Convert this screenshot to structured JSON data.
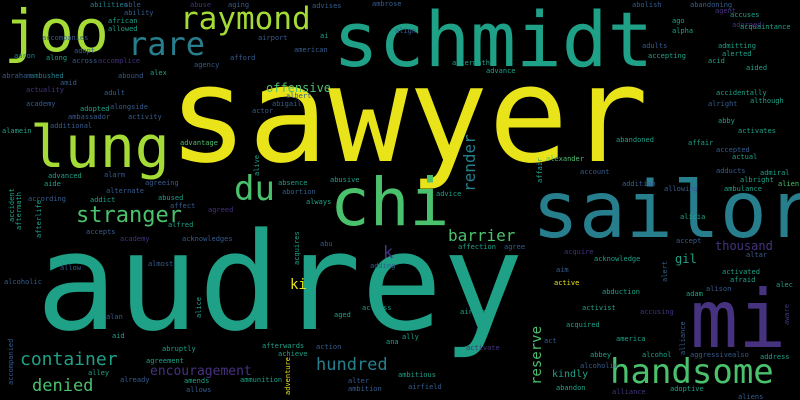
{
  "palette": {
    "background": "#000000",
    "yellow": "#e8e419",
    "lime": "#a5db36",
    "green": "#4ac16d",
    "teal": "#1fa187",
    "cyan": "#277f8e",
    "blue": "#365c8d",
    "indigo": "#46327e",
    "purple": "#440154"
  },
  "words": [
    {
      "text": "sawyer",
      "color": "yellow"
    },
    {
      "text": "audrey",
      "color": "teal"
    },
    {
      "text": "schmidt",
      "color": "teal"
    },
    {
      "text": "sailor",
      "color": "cyan"
    },
    {
      "text": "mi",
      "color": "indigo"
    },
    {
      "text": "chi",
      "color": "green"
    },
    {
      "text": "lung",
      "color": "lime"
    },
    {
      "text": "joo",
      "color": "lime"
    },
    {
      "text": "raymond",
      "color": "lime"
    },
    {
      "text": "rare",
      "color": "cyan"
    },
    {
      "text": "handsome",
      "color": "green"
    },
    {
      "text": "du",
      "color": "green"
    },
    {
      "text": "stranger",
      "color": "green"
    },
    {
      "text": "container",
      "color": "teal"
    },
    {
      "text": "denied",
      "color": "green"
    },
    {
      "text": "hundred",
      "color": "cyan"
    },
    {
      "text": "encouragement",
      "color": "indigo"
    },
    {
      "text": "barrier",
      "color": "green"
    },
    {
      "text": "render",
      "color": "cyan"
    },
    {
      "text": "reserve",
      "color": "green"
    },
    {
      "text": "offensive",
      "color": "green"
    },
    {
      "text": "ki",
      "color": "yellow"
    },
    {
      "text": "k",
      "color": "indigo"
    },
    {
      "text": "gil",
      "color": "teal"
    },
    {
      "text": "thousand",
      "color": "indigo"
    },
    {
      "text": "kindly",
      "color": "teal"
    },
    {
      "text": "abilities",
      "color": "cyan"
    },
    {
      "text": "able",
      "color": "blue"
    },
    {
      "text": "ability",
      "color": "blue"
    },
    {
      "text": "abuse",
      "color": "indigo"
    },
    {
      "text": "aging",
      "color": "blue"
    },
    {
      "text": "advises",
      "color": "blue"
    },
    {
      "text": "ambrose",
      "color": "blue"
    },
    {
      "text": "abolish",
      "color": "blue"
    },
    {
      "text": "abandoning",
      "color": "blue"
    },
    {
      "text": "agent",
      "color": "indigo"
    },
    {
      "text": "accuses",
      "color": "teal"
    },
    {
      "text": "african",
      "color": "teal"
    },
    {
      "text": "allowed",
      "color": "teal"
    },
    {
      "text": "accompanies",
      "color": "blue"
    },
    {
      "text": "adopt",
      "color": "blue"
    },
    {
      "text": "across",
      "color": "blue"
    },
    {
      "text": "aaron",
      "color": "cyan"
    },
    {
      "text": "along",
      "color": "teal"
    },
    {
      "text": "accomplice",
      "color": "indigo"
    },
    {
      "text": "airport",
      "color": "blue"
    },
    {
      "text": "ai",
      "color": "teal"
    },
    {
      "text": "american",
      "color": "blue"
    },
    {
      "text": "align",
      "color": "blue"
    },
    {
      "text": "ago",
      "color": "teal"
    },
    {
      "text": "adorned",
      "color": "indigo"
    },
    {
      "text": "alpha",
      "color": "teal"
    },
    {
      "text": "acquaintance",
      "color": "teal"
    },
    {
      "text": "admitting",
      "color": "teal"
    },
    {
      "text": "alerted",
      "color": "teal"
    },
    {
      "text": "acid",
      "color": "teal"
    },
    {
      "text": "adults",
      "color": "blue"
    },
    {
      "text": "accepting",
      "color": "teal"
    },
    {
      "text": "agency",
      "color": "blue"
    },
    {
      "text": "afford",
      "color": "blue"
    },
    {
      "text": "aftermath",
      "color": "teal"
    },
    {
      "text": "advance",
      "color": "teal"
    },
    {
      "text": "aided",
      "color": "teal"
    },
    {
      "text": "abraham",
      "color": "blue"
    },
    {
      "text": "ambushed",
      "color": "cyan"
    },
    {
      "text": "alex",
      "color": "teal"
    },
    {
      "text": "abound",
      "color": "blue"
    },
    {
      "text": "amid",
      "color": "blue"
    },
    {
      "text": "actuality",
      "color": "indigo"
    },
    {
      "text": "adult",
      "color": "blue"
    },
    {
      "text": "academy",
      "color": "blue"
    },
    {
      "text": "adopted",
      "color": "teal"
    },
    {
      "text": "alongside",
      "color": "blue"
    },
    {
      "text": "ambassador",
      "color": "blue"
    },
    {
      "text": "activity",
      "color": "blue"
    },
    {
      "text": "actor",
      "color": "blue"
    },
    {
      "text": "albert",
      "color": "blue"
    },
    {
      "text": "abigail",
      "color": "blue"
    },
    {
      "text": "accidentally",
      "color": "teal"
    },
    {
      "text": "although",
      "color": "teal"
    },
    {
      "text": "additional",
      "color": "blue"
    },
    {
      "text": "alamein",
      "color": "teal"
    },
    {
      "text": "abby",
      "color": "teal"
    },
    {
      "text": "activates",
      "color": "teal"
    },
    {
      "text": "abandoned",
      "color": "teal"
    },
    {
      "text": "affair",
      "color": "teal"
    },
    {
      "text": "accepted",
      "color": "blue"
    },
    {
      "text": "actual",
      "color": "teal"
    },
    {
      "text": "advantage",
      "color": "green"
    },
    {
      "text": "alexander",
      "color": "green"
    },
    {
      "text": "account",
      "color": "blue"
    },
    {
      "text": "adducts",
      "color": "blue"
    },
    {
      "text": "admiral",
      "color": "teal"
    },
    {
      "text": "albright",
      "color": "teal"
    },
    {
      "text": "alien",
      "color": "green"
    },
    {
      "text": "absence",
      "color": "teal"
    },
    {
      "text": "abusive",
      "color": "teal"
    },
    {
      "text": "advanced",
      "color": "teal"
    },
    {
      "text": "aide",
      "color": "teal"
    },
    {
      "text": "alarm",
      "color": "blue"
    },
    {
      "text": "alternate",
      "color": "blue"
    },
    {
      "text": "agreeing",
      "color": "blue"
    },
    {
      "text": "abortion",
      "color": "blue"
    },
    {
      "text": "advice",
      "color": "teal"
    },
    {
      "text": "addition",
      "color": "blue"
    },
    {
      "text": "allowing",
      "color": "blue"
    },
    {
      "text": "ambulance",
      "color": "teal"
    },
    {
      "text": "according",
      "color": "blue"
    },
    {
      "text": "addict",
      "color": "teal"
    },
    {
      "text": "abused",
      "color": "teal"
    },
    {
      "text": "affect",
      "color": "blue"
    },
    {
      "text": "always",
      "color": "teal"
    },
    {
      "text": "agreed",
      "color": "indigo"
    },
    {
      "text": "accepts",
      "color": "blue"
    },
    {
      "text": "alfred",
      "color": "teal"
    },
    {
      "text": "academy",
      "color": "indigo"
    },
    {
      "text": "acknowledges",
      "color": "blue"
    },
    {
      "text": "abu",
      "color": "blue"
    },
    {
      "text": "affection",
      "color": "teal"
    },
    {
      "text": "agree",
      "color": "blue"
    },
    {
      "text": "acquire",
      "color": "indigo"
    },
    {
      "text": "acknowledge",
      "color": "teal"
    },
    {
      "text": "accept",
      "color": "blue"
    },
    {
      "text": "altar",
      "color": "blue"
    },
    {
      "text": "afraid",
      "color": "teal"
    },
    {
      "text": "activated",
      "color": "teal"
    },
    {
      "text": "alison",
      "color": "blue"
    },
    {
      "text": "alec",
      "color": "teal"
    },
    {
      "text": "allow",
      "color": "blue"
    },
    {
      "text": "almost",
      "color": "blue"
    },
    {
      "text": "adding",
      "color": "blue"
    },
    {
      "text": "aim",
      "color": "blue"
    },
    {
      "text": "active",
      "color": "yellow"
    },
    {
      "text": "abduction",
      "color": "teal"
    },
    {
      "text": "adam",
      "color": "teal"
    },
    {
      "text": "actress",
      "color": "teal"
    },
    {
      "text": "aged",
      "color": "teal"
    },
    {
      "text": "activist",
      "color": "teal"
    },
    {
      "text": "accusing",
      "color": "indigo"
    },
    {
      "text": "alcoholic",
      "color": "blue"
    },
    {
      "text": "alan",
      "color": "blue"
    },
    {
      "text": "aircraft",
      "color": "teal"
    },
    {
      "text": "all",
      "color": "teal"
    },
    {
      "text": "acquired",
      "color": "teal"
    },
    {
      "text": "ally",
      "color": "teal"
    },
    {
      "text": "america",
      "color": "teal"
    },
    {
      "text": "aid",
      "color": "teal"
    },
    {
      "text": "ana",
      "color": "teal"
    },
    {
      "text": "action",
      "color": "blue"
    },
    {
      "text": "activate",
      "color": "indigo"
    },
    {
      "text": "abruptly",
      "color": "teal"
    },
    {
      "text": "afterwards",
      "color": "teal"
    },
    {
      "text": "achieve",
      "color": "teal"
    },
    {
      "text": "abbey",
      "color": "teal"
    },
    {
      "text": "alcohol",
      "color": "teal"
    },
    {
      "text": "aggressive",
      "color": "blue"
    },
    {
      "text": "also",
      "color": "blue"
    },
    {
      "text": "address",
      "color": "teal"
    },
    {
      "text": "agreement",
      "color": "teal"
    },
    {
      "text": "alley",
      "color": "teal"
    },
    {
      "text": "already",
      "color": "blue"
    },
    {
      "text": "amends",
      "color": "teal"
    },
    {
      "text": "allows",
      "color": "blue"
    },
    {
      "text": "ammunition",
      "color": "teal"
    },
    {
      "text": "alter",
      "color": "blue"
    },
    {
      "text": "ambition",
      "color": "blue"
    },
    {
      "text": "ambitious",
      "color": "teal"
    },
    {
      "text": "airfield",
      "color": "blue"
    },
    {
      "text": "abandon",
      "color": "teal"
    },
    {
      "text": "adoptive",
      "color": "teal"
    },
    {
      "text": "alliance",
      "color": "indigo"
    },
    {
      "text": "alicia",
      "color": "teal"
    },
    {
      "text": "aliens",
      "color": "blue"
    },
    {
      "text": "alcoholic",
      "color": "blue"
    },
    {
      "text": "alive",
      "color": "teal"
    },
    {
      "text": "accident",
      "color": "teal"
    },
    {
      "text": "aftermath",
      "color": "teal"
    },
    {
      "text": "accompanied",
      "color": "blue"
    },
    {
      "text": "acquires",
      "color": "teal"
    },
    {
      "text": "adventure",
      "color": "yellow"
    },
    {
      "text": "alice",
      "color": "teal"
    },
    {
      "text": "afterlife",
      "color": "teal"
    },
    {
      "text": "alert",
      "color": "blue"
    },
    {
      "text": "aware",
      "color": "indigo"
    },
    {
      "text": "alliance",
      "color": "blue"
    },
    {
      "text": "affair",
      "color": "teal"
    },
    {
      "text": "act",
      "color": "blue"
    },
    {
      "text": "alright",
      "color": "blue"
    }
  ]
}
